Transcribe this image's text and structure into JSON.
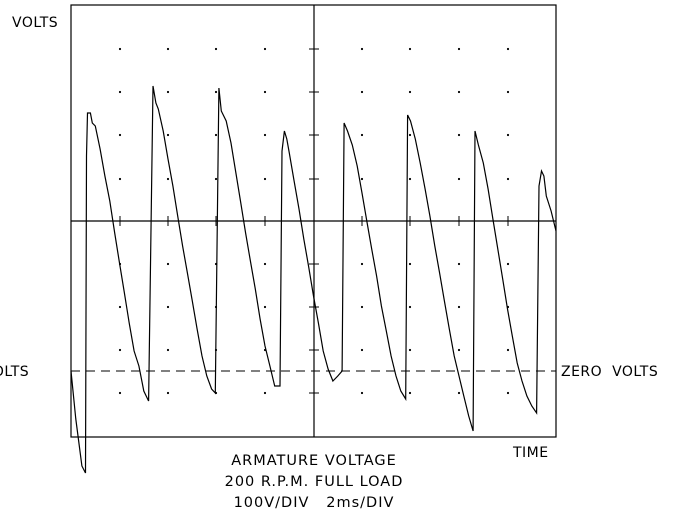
{
  "chart_data": {
    "type": "line",
    "title": "ARMATURE VOLTAGE",
    "subtitle": "200 R.P.M. FULL LOAD",
    "scale_note": "100V/DIV   2ms/DIV",
    "ylabel": "VOLTS",
    "xlabel": "TIME",
    "zero_label_left": "VOLTS",
    "zero_label_right": "ZERO  VOLTS",
    "xlim": [
      0,
      20
    ],
    "ylim": [
      -150,
      500
    ],
    "grid": "dotted",
    "zero_reference": "dashed",
    "series": [
      {
        "values_unit": "V",
        "x_unit": "ms",
        "points": [
          [
            0.0,
            0
          ],
          [
            0.2,
            -48
          ],
          [
            0.45,
            -95
          ],
          [
            0.6,
            -102
          ],
          [
            0.64,
            215
          ],
          [
            0.68,
            258
          ],
          [
            0.8,
            258
          ],
          [
            0.88,
            248
          ],
          [
            1.0,
            245
          ],
          [
            1.2,
            222
          ],
          [
            1.4,
            195
          ],
          [
            1.6,
            170
          ],
          [
            1.8,
            138
          ],
          [
            2.0,
            108
          ],
          [
            2.2,
            78
          ],
          [
            2.4,
            48
          ],
          [
            2.6,
            20
          ],
          [
            2.8,
            5
          ],
          [
            3.0,
            -20
          ],
          [
            3.2,
            -30
          ],
          [
            3.38,
            285
          ],
          [
            3.5,
            268
          ],
          [
            3.6,
            262
          ],
          [
            3.8,
            240
          ],
          [
            4.0,
            212
          ],
          [
            4.2,
            185
          ],
          [
            4.4,
            155
          ],
          [
            4.6,
            125
          ],
          [
            4.8,
            98
          ],
          [
            5.0,
            70
          ],
          [
            5.2,
            42
          ],
          [
            5.4,
            15
          ],
          [
            5.6,
            -5
          ],
          [
            5.8,
            -18
          ],
          [
            5.95,
            -22
          ],
          [
            6.1,
            283
          ],
          [
            6.2,
            260
          ],
          [
            6.4,
            250
          ],
          [
            6.6,
            228
          ],
          [
            6.8,
            198
          ],
          [
            7.0,
            168
          ],
          [
            7.2,
            138
          ],
          [
            7.4,
            110
          ],
          [
            7.6,
            82
          ],
          [
            7.8,
            52
          ],
          [
            8.0,
            25
          ],
          [
            8.2,
            5
          ],
          [
            8.4,
            -15
          ],
          [
            8.62,
            -15
          ],
          [
            8.7,
            220
          ],
          [
            8.8,
            240
          ],
          [
            8.9,
            232
          ],
          [
            9.0,
            218
          ],
          [
            9.2,
            190
          ],
          [
            9.4,
            162
          ],
          [
            9.6,
            132
          ],
          [
            9.8,
            104
          ],
          [
            10.0,
            75
          ],
          [
            10.2,
            48
          ],
          [
            10.4,
            20
          ],
          [
            10.6,
            2
          ],
          [
            10.8,
            -10
          ],
          [
            11.0,
            -5
          ],
          [
            11.18,
            0
          ],
          [
            11.26,
            248
          ],
          [
            11.4,
            240
          ],
          [
            11.6,
            226
          ],
          [
            11.8,
            205
          ],
          [
            12.0,
            178
          ],
          [
            12.2,
            150
          ],
          [
            12.4,
            122
          ],
          [
            12.6,
            95
          ],
          [
            12.8,
            65
          ],
          [
            13.0,
            40
          ],
          [
            13.2,
            15
          ],
          [
            13.4,
            -5
          ],
          [
            13.6,
            -20
          ],
          [
            13.8,
            -28
          ],
          [
            13.88,
            256
          ],
          [
            14.0,
            250
          ],
          [
            14.2,
            232
          ],
          [
            14.4,
            208
          ],
          [
            14.6,
            182
          ],
          [
            14.8,
            155
          ],
          [
            15.0,
            125
          ],
          [
            15.2,
            98
          ],
          [
            15.4,
            70
          ],
          [
            15.6,
            42
          ],
          [
            15.8,
            15
          ],
          [
            16.0,
            -5
          ],
          [
            16.2,
            -25
          ],
          [
            16.4,
            -45
          ],
          [
            16.58,
            -60
          ],
          [
            16.66,
            240
          ],
          [
            16.8,
            226
          ],
          [
            17.0,
            208
          ],
          [
            17.2,
            182
          ],
          [
            17.4,
            152
          ],
          [
            17.6,
            122
          ],
          [
            17.8,
            92
          ],
          [
            18.0,
            62
          ],
          [
            18.2,
            35
          ],
          [
            18.4,
            8
          ],
          [
            18.6,
            -10
          ],
          [
            18.8,
            -25
          ],
          [
            19.0,
            -35
          ],
          [
            19.2,
            -42
          ],
          [
            19.3,
            185
          ],
          [
            19.4,
            200
          ],
          [
            19.5,
            195
          ],
          [
            19.6,
            175
          ],
          [
            19.8,
            160
          ],
          [
            20.0,
            140
          ]
        ]
      }
    ]
  }
}
